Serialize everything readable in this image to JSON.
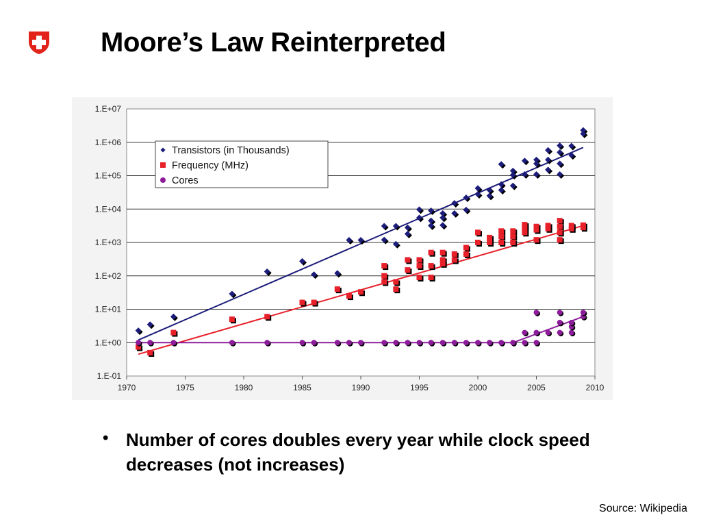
{
  "slide": {
    "title": "Moore’s Law Reinterpreted",
    "bullet": "Number of cores doubles every year while clock speed decreases (not increases)",
    "source": "Source: Wikipedia",
    "logo_icon": "swiss-shield-icon"
  },
  "chart_data": {
    "type": "scatter",
    "title": "",
    "xlabel": "",
    "ylabel": "",
    "x_scale": "linear",
    "y_scale": "log",
    "xlim": [
      1970,
      2010
    ],
    "ylim": [
      0.1,
      10000000
    ],
    "x_ticks": [
      "1970",
      "1975",
      "1980",
      "1985",
      "1990",
      "1995",
      "2000",
      "2005",
      "2010"
    ],
    "y_ticks": [
      "1.E-01",
      "1.E+00",
      "1.E+01",
      "1.E+02",
      "1.E+03",
      "1.E+04",
      "1.E+05",
      "1.E+06",
      "1.E+07"
    ],
    "grid": "horizontal",
    "legend_position": "top-left",
    "series": [
      {
        "name": "Transistors (in Thousands)",
        "color": "#1c1c7a",
        "marker": "diamond",
        "points": [
          [
            1971,
            2.3
          ],
          [
            1972,
            3.5
          ],
          [
            1974,
            6
          ],
          [
            1979,
            29
          ],
          [
            1982,
            134
          ],
          [
            1985,
            275
          ],
          [
            1986,
            110
          ],
          [
            1988,
            120
          ],
          [
            1989,
            1180
          ],
          [
            1990,
            1180
          ],
          [
            1992,
            3100
          ],
          [
            1992,
            1200
          ],
          [
            1993,
            3100
          ],
          [
            1993,
            900
          ],
          [
            1994,
            2800
          ],
          [
            1994,
            1800
          ],
          [
            1995,
            5500
          ],
          [
            1995,
            9700
          ],
          [
            1996,
            4500
          ],
          [
            1996,
            9000
          ],
          [
            1996,
            3200
          ],
          [
            1997,
            7500
          ],
          [
            1997,
            5500
          ],
          [
            1997,
            3300
          ],
          [
            1998,
            7500
          ],
          [
            1998,
            15000
          ],
          [
            1999,
            9500
          ],
          [
            1999,
            22000
          ],
          [
            2000,
            42000
          ],
          [
            2000,
            28000
          ],
          [
            2001,
            25000
          ],
          [
            2001,
            37000
          ],
          [
            2002,
            220000
          ],
          [
            2002,
            55000
          ],
          [
            2002,
            37000
          ],
          [
            2003,
            140000
          ],
          [
            2003,
            105000
          ],
          [
            2003,
            50000
          ],
          [
            2004,
            280000
          ],
          [
            2004,
            110000
          ],
          [
            2005,
            300000
          ],
          [
            2005,
            230000
          ],
          [
            2005,
            110000
          ],
          [
            2006,
            580000
          ],
          [
            2006,
            300000
          ],
          [
            2006,
            150000
          ],
          [
            2007,
            800000
          ],
          [
            2007,
            500000
          ],
          [
            2007,
            230000
          ],
          [
            2007,
            110000
          ],
          [
            2008,
            780000
          ],
          [
            2008,
            410000
          ],
          [
            2009,
            2300000
          ],
          [
            2009,
            1800000
          ]
        ],
        "trend": [
          [
            1971,
            1.2
          ],
          [
            2009,
            700000
          ]
        ]
      },
      {
        "name": "Frequency (MHz)",
        "color": "#e8202a",
        "marker": "square",
        "points": [
          [
            1971,
            0.74
          ],
          [
            1972,
            0.5
          ],
          [
            1974,
            2
          ],
          [
            1979,
            5
          ],
          [
            1982,
            6
          ],
          [
            1985,
            16
          ],
          [
            1986,
            16
          ],
          [
            1988,
            40
          ],
          [
            1989,
            25
          ],
          [
            1990,
            33
          ],
          [
            1992,
            200
          ],
          [
            1992,
            100
          ],
          [
            1992,
            66
          ],
          [
            1993,
            66
          ],
          [
            1993,
            40
          ],
          [
            1994,
            300
          ],
          [
            1994,
            150
          ],
          [
            1995,
            300
          ],
          [
            1995,
            200
          ],
          [
            1995,
            90
          ],
          [
            1996,
            500
          ],
          [
            1996,
            200
          ],
          [
            1996,
            90
          ],
          [
            1997,
            500
          ],
          [
            1997,
            300
          ],
          [
            1997,
            233
          ],
          [
            1998,
            450
          ],
          [
            1998,
            300
          ],
          [
            1999,
            700
          ],
          [
            1999,
            450
          ],
          [
            2000,
            2000
          ],
          [
            2000,
            1000
          ],
          [
            2001,
            1400
          ],
          [
            2001,
            1000
          ],
          [
            2002,
            2200
          ],
          [
            2002,
            1500
          ],
          [
            2002,
            1000
          ],
          [
            2003,
            2200
          ],
          [
            2003,
            1500
          ],
          [
            2003,
            1000
          ],
          [
            2004,
            3400
          ],
          [
            2004,
            2800
          ],
          [
            2004,
            2000
          ],
          [
            2005,
            3000
          ],
          [
            2005,
            2400
          ],
          [
            2005,
            1200
          ],
          [
            2006,
            3200
          ],
          [
            2006,
            2600
          ],
          [
            2007,
            4500
          ],
          [
            2007,
            3000
          ],
          [
            2007,
            2000
          ],
          [
            2007,
            1200
          ],
          [
            2008,
            3200
          ],
          [
            2008,
            2600
          ],
          [
            2009,
            3300
          ],
          [
            2009,
            2800
          ]
        ],
        "trend": [
          [
            1971,
            0.45
          ],
          [
            2009,
            3200
          ]
        ]
      },
      {
        "name": "Cores",
        "color": "#8c1c9a",
        "marker": "circle",
        "points": [
          [
            1971,
            1
          ],
          [
            1972,
            1
          ],
          [
            1974,
            1
          ],
          [
            1979,
            1
          ],
          [
            1982,
            1
          ],
          [
            1985,
            1
          ],
          [
            1986,
            1
          ],
          [
            1988,
            1
          ],
          [
            1989,
            1
          ],
          [
            1990,
            1
          ],
          [
            1992,
            1
          ],
          [
            1993,
            1
          ],
          [
            1994,
            1
          ],
          [
            1995,
            1
          ],
          [
            1996,
            1
          ],
          [
            1997,
            1
          ],
          [
            1998,
            1
          ],
          [
            1999,
            1
          ],
          [
            2000,
            1
          ],
          [
            2001,
            1
          ],
          [
            2002,
            1
          ],
          [
            2003,
            1
          ],
          [
            2004,
            1
          ],
          [
            2004,
            2
          ],
          [
            2005,
            1
          ],
          [
            2005,
            2
          ],
          [
            2005,
            8
          ],
          [
            2006,
            2
          ],
          [
            2007,
            2
          ],
          [
            2007,
            4
          ],
          [
            2007,
            8
          ],
          [
            2008,
            2
          ],
          [
            2008,
            3
          ],
          [
            2008,
            4
          ],
          [
            2009,
            6
          ],
          [
            2009,
            8
          ]
        ],
        "trend": [
          [
            1971,
            1
          ],
          [
            2003,
            1
          ],
          [
            2009,
            6
          ]
        ]
      }
    ]
  }
}
